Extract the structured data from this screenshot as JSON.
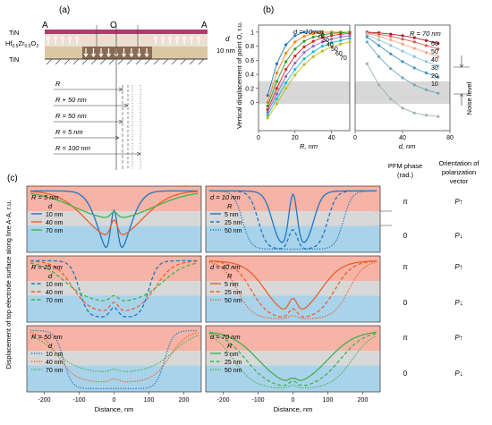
{
  "panel_labels": {
    "a": "(a)",
    "b": "(b)",
    "c": "(c)"
  },
  "schematic": {
    "top_label": "TiN",
    "layer_label": "Hf0.5Zr0.5O2",
    "bottom_label": "TiN",
    "point_a_left": "A",
    "point_o": "O",
    "point_a_right": "A",
    "thickness_symbol": "d",
    "thickness_value": "10 nm",
    "radius_labels": [
      "R",
      "R + 50 nm",
      "R = 50 nm",
      "R = 5 nm",
      "R = 100 nm"
    ]
  },
  "right_column": {
    "phase_header": [
      "PFM phase",
      "(rad.)"
    ],
    "orient_header": [
      "Orientation of",
      "polarization",
      "vector"
    ],
    "rows": [
      {
        "phase": "π",
        "vector": "P↑"
      },
      {
        "phase": "0",
        "vector": "P↓"
      },
      {
        "phase": "π",
        "vector": "P↑"
      },
      {
        "phase": "0",
        "vector": "P↓"
      },
      {
        "phase": "π",
        "vector": "P↑"
      },
      {
        "phase": "0",
        "vector": "P↓"
      }
    ],
    "noise_label": "Noise level"
  },
  "colors": {
    "blue": "#1f77c4",
    "orange": "#e8622a",
    "green": "#3fb34f",
    "band_red": "#f6b3a6",
    "band_gray": "#d8d8d8",
    "band_blue": "#a9d3ea"
  },
  "chart_data": [
    {
      "id": "b1",
      "type": "line",
      "ylabel": "Vertical displacement of point O, r.u.",
      "xlabel": "R, nm",
      "xlim": [
        0,
        50
      ],
      "ylim": [
        -0.4,
        1.1
      ],
      "xticks": [
        0,
        20,
        40
      ],
      "yticks": [
        0,
        0.2,
        0.4,
        0.6,
        0.8,
        1
      ],
      "noise_band": [
        -0.02,
        0.3
      ],
      "series_annotation": "d = 10 nm",
      "series_tags": [
        "20",
        "30",
        "40",
        "50",
        "60",
        "70"
      ],
      "x": [
        5,
        10,
        15,
        20,
        25,
        30,
        35,
        40,
        45,
        50
      ],
      "series": [
        {
          "name": "10",
          "values": [
            0.1,
            0.55,
            0.82,
            0.95,
            1.0,
            1.0,
            1.0,
            1.0,
            1.0,
            1.0
          ]
        },
        {
          "name": "20",
          "values": [
            0.0,
            0.42,
            0.7,
            0.86,
            0.94,
            0.98,
            1.0,
            1.0,
            1.0,
            1.0
          ]
        },
        {
          "name": "30",
          "values": [
            -0.05,
            0.3,
            0.58,
            0.76,
            0.87,
            0.93,
            0.96,
            0.98,
            0.99,
            1.0
          ]
        },
        {
          "name": "40",
          "values": [
            -0.1,
            0.2,
            0.47,
            0.66,
            0.79,
            0.87,
            0.92,
            0.95,
            0.97,
            0.98
          ]
        },
        {
          "name": "50",
          "values": [
            -0.14,
            0.12,
            0.37,
            0.56,
            0.71,
            0.8,
            0.86,
            0.9,
            0.93,
            0.95
          ]
        },
        {
          "name": "60",
          "values": [
            -0.18,
            0.05,
            0.28,
            0.47,
            0.62,
            0.72,
            0.8,
            0.85,
            0.88,
            0.91
          ]
        },
        {
          "name": "70",
          "values": [
            -0.22,
            -0.02,
            0.2,
            0.39,
            0.54,
            0.65,
            0.73,
            0.79,
            0.83,
            0.86
          ]
        }
      ]
    },
    {
      "id": "b2",
      "type": "line",
      "xlabel": "d, nm",
      "xlim": [
        0,
        80
      ],
      "ylim": [
        -0.4,
        1.1
      ],
      "xticks": [
        0,
        40,
        80
      ],
      "noise_band": [
        -0.02,
        0.3
      ],
      "series_annotation": "R = 70 nm",
      "series_tags": [
        "60",
        "50",
        "40",
        "30",
        "20",
        "10"
      ],
      "x": [
        10,
        20,
        30,
        40,
        50,
        60,
        70
      ],
      "series": [
        {
          "name": "70",
          "values": [
            1.0,
            0.99,
            0.97,
            0.95,
            0.92,
            0.88,
            0.84
          ]
        },
        {
          "name": "60",
          "values": [
            0.99,
            0.97,
            0.94,
            0.9,
            0.86,
            0.81,
            0.76
          ]
        },
        {
          "name": "50",
          "values": [
            0.98,
            0.94,
            0.89,
            0.83,
            0.77,
            0.71,
            0.65
          ]
        },
        {
          "name": "40",
          "values": [
            0.96,
            0.89,
            0.81,
            0.73,
            0.65,
            0.58,
            0.52
          ]
        },
        {
          "name": "30",
          "values": [
            0.93,
            0.81,
            0.69,
            0.58,
            0.49,
            0.42,
            0.36
          ]
        },
        {
          "name": "20",
          "values": [
            0.86,
            0.65,
            0.48,
            0.35,
            0.25,
            0.18,
            0.13
          ]
        },
        {
          "name": "10",
          "values": [
            0.55,
            0.25,
            0.05,
            -0.08,
            -0.15,
            -0.18,
            -0.2
          ]
        }
      ]
    },
    {
      "id": "c1",
      "type": "line",
      "legend_title": "R = 5 nm",
      "legend_sub": "d",
      "line_style": "solid",
      "xlim": [
        -250,
        250
      ],
      "ylim": [
        -0.8,
        1.25
      ],
      "series": [
        {
          "name": "10 nm",
          "color": "blue",
          "a": 2.2,
          "w": 40,
          "bump": 1.6
        },
        {
          "name": "40 nm",
          "color": "orange",
          "a": 1.45,
          "w": 80,
          "bump": 0.55
        },
        {
          "name": "70 nm",
          "color": "green",
          "a": 0.85,
          "w": 110,
          "bump": 0.2
        }
      ]
    },
    {
      "id": "c2",
      "type": "line",
      "legend_title": "d = 10 nm",
      "legend_sub": "R",
      "color": "blue",
      "xlim": [
        -250,
        250
      ],
      "ylim": [
        -0.8,
        1.25
      ],
      "series": [
        {
          "name": "5 nm",
          "style": "solid",
          "half": 60,
          "w": 12,
          "bump": 1.7
        },
        {
          "name": "25 nm",
          "style": "dashed",
          "half": 100,
          "w": 12,
          "bump": 0.6
        },
        {
          "name": "50 nm",
          "style": "dotted",
          "half": 145,
          "w": 12,
          "bump": 0
        }
      ]
    },
    {
      "id": "c3",
      "type": "line",
      "legend_title": "R = 25 nm",
      "legend_sub": "d",
      "line_style": "dashed",
      "xlim": [
        -250,
        250
      ],
      "ylim": [
        -0.8,
        1.25
      ],
      "series": [
        {
          "name": "10 nm",
          "color": "blue",
          "half": 100,
          "w": 12,
          "depth": 1.75,
          "bump": 0.3
        },
        {
          "name": "40 nm",
          "color": "orange",
          "half": 120,
          "w": 25,
          "depth": 1.6,
          "bump": 0.3
        },
        {
          "name": "70 nm",
          "color": "green",
          "half": 140,
          "w": 35,
          "depth": 1.3,
          "bump": 0.2
        }
      ]
    },
    {
      "id": "c4",
      "type": "line",
      "legend_title": "d = 40 nm",
      "legend_sub": "R",
      "color": "orange",
      "xlim": [
        -250,
        250
      ],
      "ylim": [
        -0.8,
        1.25
      ],
      "series": [
        {
          "name": "5 nm",
          "style": "solid",
          "half": 80,
          "w": 30,
          "bump": 0.55
        },
        {
          "name": "25 nm",
          "style": "dashed",
          "half": 120,
          "w": 25,
          "bump": 0.3
        },
        {
          "name": "50 nm",
          "style": "dotted",
          "half": 160,
          "w": 22,
          "bump": 0.1
        }
      ]
    },
    {
      "id": "c5",
      "type": "line",
      "legend_title": "R = 50 nm",
      "legend_sub": "d",
      "line_style": "dotted",
      "xlim": [
        -250,
        250
      ],
      "ylim": [
        -0.8,
        1.25
      ],
      "xlabel": "Distance, nm",
      "xticks": [
        -200,
        -100,
        0,
        100,
        200
      ],
      "series": [
        {
          "name": "10 nm",
          "color": "blue",
          "half": 145,
          "w": 12,
          "depth": 1.8,
          "bump": 0
        },
        {
          "name": "40 nm",
          "color": "orange",
          "half": 160,
          "w": 25,
          "depth": 1.6,
          "bump": 0.1
        },
        {
          "name": "70 nm",
          "color": "green",
          "half": 170,
          "w": 35,
          "depth": 1.3,
          "bump": 0.1
        }
      ]
    },
    {
      "id": "c6",
      "type": "line",
      "legend_title": "d = 70 nm",
      "legend_sub": "R",
      "color": "green",
      "xlim": [
        -250,
        250
      ],
      "ylim": [
        -0.8,
        1.25
      ],
      "xlabel": "Distance, nm",
      "xticks": [
        -200,
        -100,
        0,
        100,
        200
      ],
      "series": [
        {
          "name": "5 nm",
          "style": "solid",
          "half": 100,
          "w": 40,
          "bump": 0.2
        },
        {
          "name": "25 nm",
          "style": "dashed",
          "half": 135,
          "w": 35,
          "bump": 0.2
        },
        {
          "name": "50 nm",
          "style": "dotted",
          "half": 170,
          "w": 30,
          "bump": 0.1
        }
      ]
    }
  ],
  "c_ylabel": "Displacement of top electrode surface along line A-A, r.u."
}
